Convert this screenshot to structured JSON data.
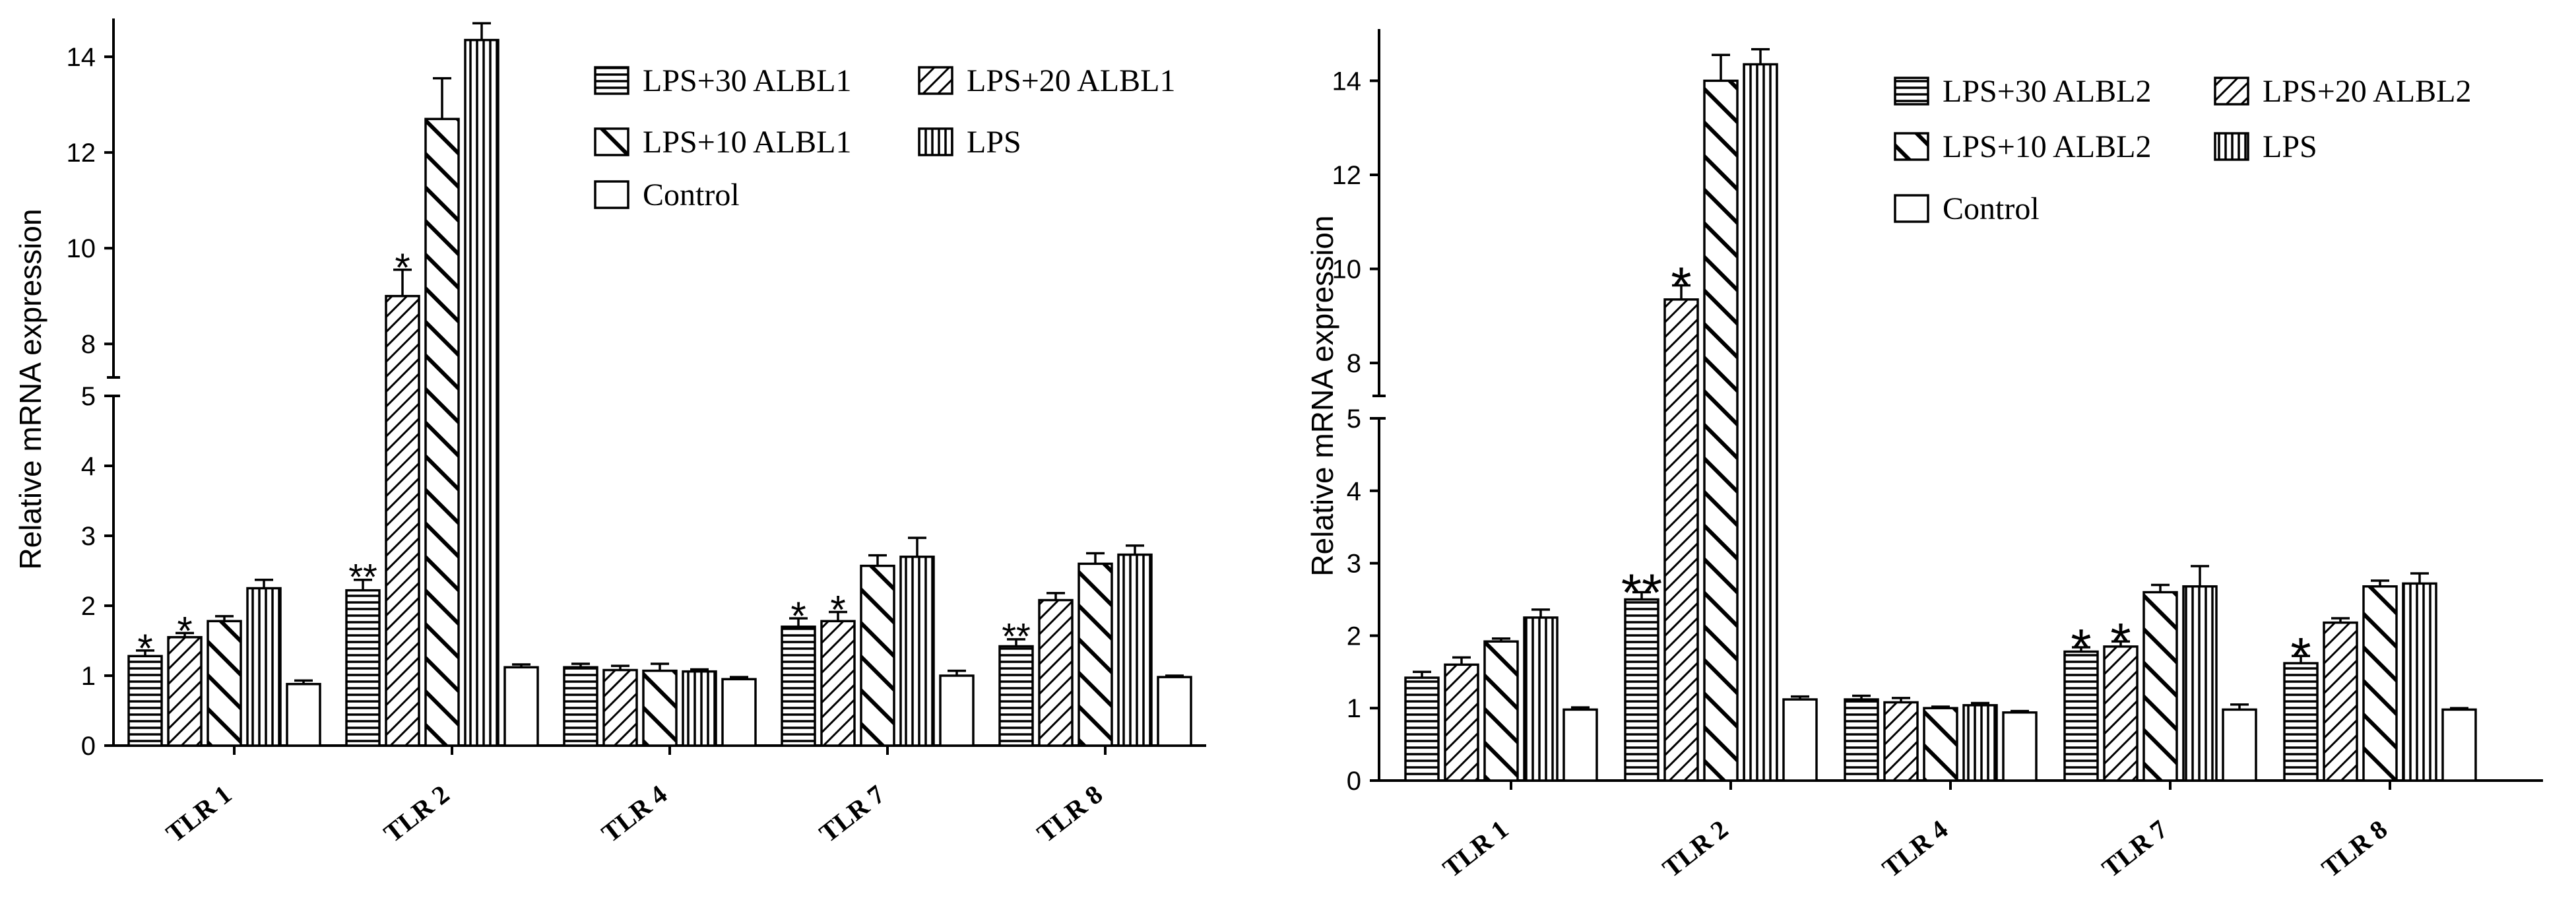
{
  "chart_data": [
    {
      "type": "bar",
      "ylabel": "Relative mRNA expression",
      "categories": [
        "TLR 1",
        "TLR 2",
        "TLR 4",
        "TLR 7",
        "TLR 8"
      ],
      "axis_break": {
        "lower_range": [
          0,
          5
        ],
        "upper_range": [
          7.3,
          14.8
        ]
      },
      "ticks_lower": [
        0,
        1,
        2,
        3,
        4,
        5
      ],
      "ticks_upper": [
        8,
        10,
        12,
        14
      ],
      "legend_position": "top-right",
      "series": [
        {
          "name": "LPS+30 ALBL1",
          "pattern": "horizontal",
          "values": [
            1.28,
            2.22,
            1.12,
            1.7,
            1.42
          ],
          "errors": [
            0.08,
            0.15,
            0.05,
            0.12,
            0.1
          ]
        },
        {
          "name": "LPS+20 ALBL1",
          "pattern": "diagonal",
          "values": [
            1.55,
            9.0,
            1.08,
            1.78,
            2.08
          ],
          "errors": [
            0.06,
            0.55,
            0.06,
            0.13,
            0.1
          ]
        },
        {
          "name": "LPS+10 ALBL1",
          "pattern": "backdiagonal",
          "values": [
            1.78,
            12.7,
            1.07,
            2.57,
            2.6
          ],
          "errors": [
            0.07,
            0.85,
            0.1,
            0.15,
            0.15
          ]
        },
        {
          "name": "LPS",
          "pattern": "vertical",
          "values": [
            2.25,
            14.35,
            1.06,
            2.7,
            2.73
          ],
          "errors": [
            0.12,
            0.35,
            0.03,
            0.27,
            0.13
          ]
        },
        {
          "name": "Control",
          "pattern": "none",
          "values": [
            0.88,
            1.12,
            0.95,
            1.0,
            0.98
          ],
          "errors": [
            0.05,
            0.04,
            0.03,
            0.07,
            0.02
          ]
        }
      ],
      "annotations": [
        {
          "category": 0,
          "series": 0,
          "text": "*"
        },
        {
          "category": 0,
          "series": 1,
          "text": "*"
        },
        {
          "category": 1,
          "series": 0,
          "text": "**"
        },
        {
          "category": 1,
          "series": 1,
          "text": "*"
        },
        {
          "category": 3,
          "series": 0,
          "text": "*"
        },
        {
          "category": 3,
          "series": 1,
          "text": "*"
        },
        {
          "category": 4,
          "series": 0,
          "text": "**"
        }
      ]
    },
    {
      "type": "bar",
      "ylabel": "Relative mRNA expression",
      "categories": [
        "TLR 1",
        "TLR 2",
        "TLR 4",
        "TLR 7",
        "TLR 8"
      ],
      "axis_break": {
        "lower_range": [
          0,
          5
        ],
        "upper_range": [
          7.3,
          15.1
        ]
      },
      "ticks_lower": [
        0,
        1,
        2,
        3,
        4,
        5
      ],
      "ticks_upper": [
        8,
        10,
        12,
        14
      ],
      "legend_position": "top-right",
      "series": [
        {
          "name": "LPS+30 ALBL2",
          "pattern": "horizontal",
          "values": [
            1.42,
            2.5,
            1.12,
            1.78,
            1.62
          ],
          "errors": [
            0.08,
            0.1,
            0.05,
            0.06,
            0.1
          ]
        },
        {
          "name": "LPS+20 ALBL2",
          "pattern": "diagonal",
          "values": [
            1.6,
            9.35,
            1.08,
            1.85,
            2.18
          ],
          "errors": [
            0.1,
            0.3,
            0.06,
            0.07,
            0.06
          ]
        },
        {
          "name": "LPS+10 ALBL2",
          "pattern": "backdiagonal",
          "values": [
            1.92,
            14.0,
            1.0,
            2.6,
            2.68
          ],
          "errors": [
            0.04,
            0.55,
            0.02,
            0.1,
            0.08
          ]
        },
        {
          "name": "LPS",
          "pattern": "vertical",
          "values": [
            2.25,
            14.35,
            1.04,
            2.68,
            2.72
          ],
          "errors": [
            0.11,
            0.32,
            0.03,
            0.28,
            0.14
          ]
        },
        {
          "name": "Control",
          "pattern": "none",
          "values": [
            0.98,
            1.12,
            0.94,
            0.98,
            0.98
          ],
          "errors": [
            0.03,
            0.04,
            0.02,
            0.07,
            0.02
          ]
        }
      ],
      "annotations": [
        {
          "category": 1,
          "series": 0,
          "text": "**"
        },
        {
          "category": 1,
          "series": 1,
          "text": "*"
        },
        {
          "category": 3,
          "series": 0,
          "text": "*"
        },
        {
          "category": 3,
          "series": 1,
          "text": "*"
        },
        {
          "category": 4,
          "series": 0,
          "text": "*"
        }
      ]
    }
  ]
}
